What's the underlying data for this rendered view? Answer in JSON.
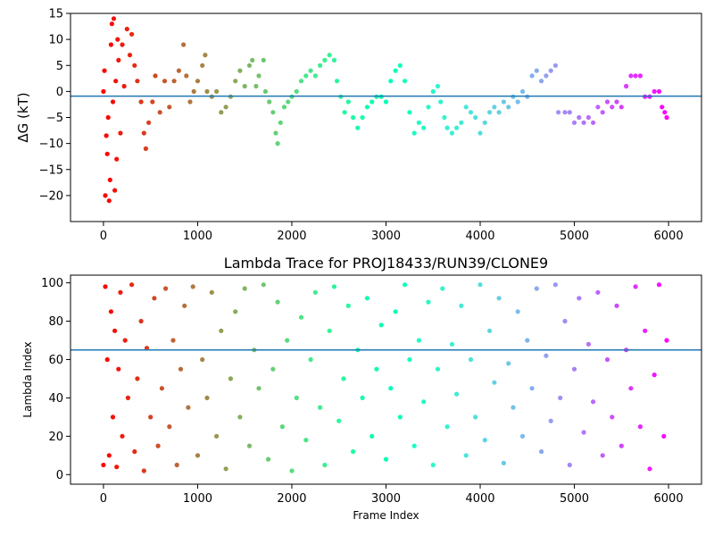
{
  "chart_data": [
    {
      "type": "scatter",
      "title": "",
      "xlabel": "",
      "ylabel": "ΔG (kT)",
      "xlim": [
        -350,
        6350
      ],
      "ylim": [
        -25,
        15
      ],
      "x_ticks": [
        0,
        1000,
        2000,
        3000,
        4000,
        5000,
        6000
      ],
      "y_ticks": [
        15,
        10,
        5,
        0,
        -5,
        -10,
        -15,
        -20
      ],
      "grid": false,
      "color_scale": "rainbow by frame index (red at 0, violet at 6000)",
      "reference_line": {
        "y": -0.9,
        "color": "#1f77b4"
      },
      "series": [
        {
          "points": [
            [
              0,
              0
            ],
            [
              10,
              4
            ],
            [
              20,
              -20
            ],
            [
              30,
              -8.5
            ],
            [
              40,
              -12
            ],
            [
              50,
              -5
            ],
            [
              60,
              -21
            ],
            [
              70,
              -17
            ],
            [
              80,
              9
            ],
            [
              90,
              13
            ],
            [
              100,
              -2
            ],
            [
              110,
              14
            ],
            [
              120,
              -19
            ],
            [
              130,
              2
            ],
            [
              140,
              -13
            ],
            [
              150,
              10
            ],
            [
              160,
              6
            ],
            [
              180,
              -8
            ],
            [
              200,
              9
            ],
            [
              220,
              1
            ],
            [
              250,
              12
            ],
            [
              280,
              7
            ],
            [
              300,
              11
            ],
            [
              330,
              5
            ],
            [
              360,
              2
            ],
            [
              400,
              -2
            ],
            [
              430,
              -8
            ],
            [
              450,
              -11
            ],
            [
              480,
              -6
            ],
            [
              520,
              -2
            ],
            [
              550,
              3
            ],
            [
              600,
              -4
            ],
            [
              650,
              2
            ],
            [
              700,
              -3
            ],
            [
              750,
              2
            ],
            [
              800,
              4
            ],
            [
              850,
              9
            ],
            [
              880,
              3
            ],
            [
              920,
              -2
            ],
            [
              960,
              0
            ],
            [
              1000,
              2
            ],
            [
              1050,
              5
            ],
            [
              1080,
              7
            ],
            [
              1100,
              0
            ],
            [
              1150,
              -1
            ],
            [
              1200,
              0
            ],
            [
              1250,
              -4
            ],
            [
              1300,
              -3
            ],
            [
              1350,
              -1
            ],
            [
              1400,
              2
            ],
            [
              1450,
              4
            ],
            [
              1500,
              1
            ],
            [
              1550,
              5
            ],
            [
              1580,
              6
            ],
            [
              1620,
              1
            ],
            [
              1650,
              3
            ],
            [
              1700,
              6
            ],
            [
              1720,
              0
            ],
            [
              1760,
              -2
            ],
            [
              1800,
              -4
            ],
            [
              1830,
              -8
            ],
            [
              1850,
              -10
            ],
            [
              1880,
              -6
            ],
            [
              1920,
              -3
            ],
            [
              1960,
              -2
            ],
            [
              2000,
              -1
            ],
            [
              2050,
              0
            ],
            [
              2100,
              2
            ],
            [
              2150,
              3
            ],
            [
              2200,
              4
            ],
            [
              2250,
              3
            ],
            [
              2300,
              5
            ],
            [
              2350,
              6
            ],
            [
              2400,
              7
            ],
            [
              2450,
              6
            ],
            [
              2480,
              2
            ],
            [
              2520,
              -1
            ],
            [
              2560,
              -4
            ],
            [
              2600,
              -2
            ],
            [
              2650,
              -5
            ],
            [
              2700,
              -7
            ],
            [
              2750,
              -5
            ],
            [
              2800,
              -3
            ],
            [
              2850,
              -2
            ],
            [
              2900,
              -1
            ],
            [
              2950,
              -1
            ],
            [
              3000,
              -2
            ],
            [
              3050,
              2
            ],
            [
              3100,
              4
            ],
            [
              3150,
              5
            ],
            [
              3200,
              2
            ],
            [
              3250,
              -4
            ],
            [
              3300,
              -8
            ],
            [
              3350,
              -6
            ],
            [
              3400,
              -7
            ],
            [
              3450,
              -3
            ],
            [
              3500,
              0
            ],
            [
              3550,
              1
            ],
            [
              3580,
              -2
            ],
            [
              3620,
              -5
            ],
            [
              3650,
              -7
            ],
            [
              3700,
              -8
            ],
            [
              3750,
              -7
            ],
            [
              3800,
              -6
            ],
            [
              3850,
              -3
            ],
            [
              3900,
              -4
            ],
            [
              3950,
              -5
            ],
            [
              4000,
              -8
            ],
            [
              4050,
              -6
            ],
            [
              4100,
              -4
            ],
            [
              4150,
              -3
            ],
            [
              4200,
              -4
            ],
            [
              4250,
              -2
            ],
            [
              4300,
              -3
            ],
            [
              4350,
              -1
            ],
            [
              4400,
              -2
            ],
            [
              4450,
              0
            ],
            [
              4500,
              -1
            ],
            [
              4550,
              3
            ],
            [
              4600,
              4
            ],
            [
              4650,
              2
            ],
            [
              4700,
              3
            ],
            [
              4750,
              4
            ],
            [
              4800,
              5
            ],
            [
              4830,
              -4
            ],
            [
              4900,
              -4
            ],
            [
              4950,
              -4
            ],
            [
              5000,
              -6
            ],
            [
              5050,
              -5
            ],
            [
              5100,
              -6
            ],
            [
              5150,
              -5
            ],
            [
              5200,
              -6
            ],
            [
              5250,
              -3
            ],
            [
              5300,
              -4
            ],
            [
              5350,
              -2
            ],
            [
              5400,
              -3
            ],
            [
              5450,
              -2
            ],
            [
              5500,
              -3
            ],
            [
              5550,
              1
            ],
            [
              5600,
              3
            ],
            [
              5650,
              3
            ],
            [
              5700,
              3
            ],
            [
              5750,
              -1
            ],
            [
              5800,
              -1
            ],
            [
              5850,
              0
            ],
            [
              5900,
              0
            ],
            [
              5930,
              -3
            ],
            [
              5960,
              -4
            ],
            [
              5980,
              -5
            ]
          ]
        }
      ]
    },
    {
      "type": "scatter",
      "title": "Lambda Trace for PROJ18433/RUN39/CLONE9",
      "xlabel": "Frame Index",
      "ylabel": "Lambda Index",
      "xlim": [
        -350,
        6350
      ],
      "ylim": [
        -5,
        104
      ],
      "x_ticks": [
        0,
        1000,
        2000,
        3000,
        4000,
        5000,
        6000
      ],
      "y_ticks": [
        100,
        80,
        60,
        40,
        20,
        0
      ],
      "grid": false,
      "color_scale": "rainbow by frame index (red at 0, violet at 6000)",
      "reference_line": {
        "y": 65,
        "color": "#1f77b4"
      },
      "series": [
        {
          "points": [
            [
              0,
              5
            ],
            [
              20,
              98
            ],
            [
              40,
              60
            ],
            [
              60,
              10
            ],
            [
              80,
              85
            ],
            [
              100,
              30
            ],
            [
              120,
              75
            ],
            [
              140,
              4
            ],
            [
              160,
              55
            ],
            [
              180,
              95
            ],
            [
              200,
              20
            ],
            [
              230,
              70
            ],
            [
              260,
              40
            ],
            [
              300,
              99
            ],
            [
              330,
              12
            ],
            [
              360,
              50
            ],
            [
              400,
              80
            ],
            [
              430,
              2
            ],
            [
              460,
              66
            ],
            [
              500,
              30
            ],
            [
              540,
              92
            ],
            [
              580,
              15
            ],
            [
              620,
              45
            ],
            [
              660,
              97
            ],
            [
              700,
              25
            ],
            [
              740,
              70
            ],
            [
              780,
              5
            ],
            [
              820,
              55
            ],
            [
              860,
              88
            ],
            [
              900,
              35
            ],
            [
              950,
              98
            ],
            [
              1000,
              10
            ],
            [
              1050,
              60
            ],
            [
              1100,
              40
            ],
            [
              1150,
              95
            ],
            [
              1200,
              20
            ],
            [
              1250,
              75
            ],
            [
              1300,
              3
            ],
            [
              1350,
              50
            ],
            [
              1400,
              85
            ],
            [
              1450,
              30
            ],
            [
              1500,
              97
            ],
            [
              1550,
              15
            ],
            [
              1600,
              65
            ],
            [
              1650,
              45
            ],
            [
              1700,
              99
            ],
            [
              1750,
              8
            ],
            [
              1800,
              55
            ],
            [
              1850,
              90
            ],
            [
              1900,
              25
            ],
            [
              1950,
              70
            ],
            [
              2000,
              2
            ],
            [
              2050,
              40
            ],
            [
              2100,
              82
            ],
            [
              2150,
              18
            ],
            [
              2200,
              60
            ],
            [
              2250,
              95
            ],
            [
              2300,
              35
            ],
            [
              2350,
              5
            ],
            [
              2400,
              75
            ],
            [
              2450,
              98
            ],
            [
              2500,
              28
            ],
            [
              2550,
              50
            ],
            [
              2600,
              88
            ],
            [
              2650,
              12
            ],
            [
              2700,
              65
            ],
            [
              2750,
              40
            ],
            [
              2800,
              92
            ],
            [
              2850,
              20
            ],
            [
              2900,
              55
            ],
            [
              2950,
              78
            ],
            [
              3000,
              8
            ],
            [
              3050,
              45
            ],
            [
              3100,
              85
            ],
            [
              3150,
              30
            ],
            [
              3200,
              99
            ],
            [
              3250,
              60
            ],
            [
              3300,
              15
            ],
            [
              3350,
              70
            ],
            [
              3400,
              38
            ],
            [
              3450,
              90
            ],
            [
              3500,
              5
            ],
            [
              3550,
              55
            ],
            [
              3600,
              97
            ],
            [
              3650,
              25
            ],
            [
              3700,
              68
            ],
            [
              3750,
              42
            ],
            [
              3800,
              88
            ],
            [
              3850,
              10
            ],
            [
              3900,
              60
            ],
            [
              3950,
              30
            ],
            [
              4000,
              99
            ],
            [
              4050,
              18
            ],
            [
              4100,
              75
            ],
            [
              4150,
              48
            ],
            [
              4200,
              92
            ],
            [
              4250,
              6
            ],
            [
              4300,
              58
            ],
            [
              4350,
              35
            ],
            [
              4400,
              85
            ],
            [
              4450,
              20
            ],
            [
              4500,
              70
            ],
            [
              4550,
              45
            ],
            [
              4600,
              97
            ],
            [
              4650,
              12
            ],
            [
              4700,
              62
            ],
            [
              4750,
              28
            ],
            [
              4800,
              99
            ],
            [
              4850,
              40
            ],
            [
              4900,
              80
            ],
            [
              4950,
              5
            ],
            [
              5000,
              55
            ],
            [
              5050,
              92
            ],
            [
              5100,
              22
            ],
            [
              5150,
              68
            ],
            [
              5200,
              38
            ],
            [
              5250,
              95
            ],
            [
              5300,
              10
            ],
            [
              5350,
              60
            ],
            [
              5400,
              30
            ],
            [
              5450,
              88
            ],
            [
              5500,
              15
            ],
            [
              5550,
              65
            ],
            [
              5600,
              45
            ],
            [
              5650,
              98
            ],
            [
              5700,
              25
            ],
            [
              5750,
              75
            ],
            [
              5800,
              3
            ],
            [
              5850,
              52
            ],
            [
              5900,
              99
            ],
            [
              5950,
              20
            ],
            [
              5980,
              70
            ]
          ]
        }
      ]
    }
  ]
}
